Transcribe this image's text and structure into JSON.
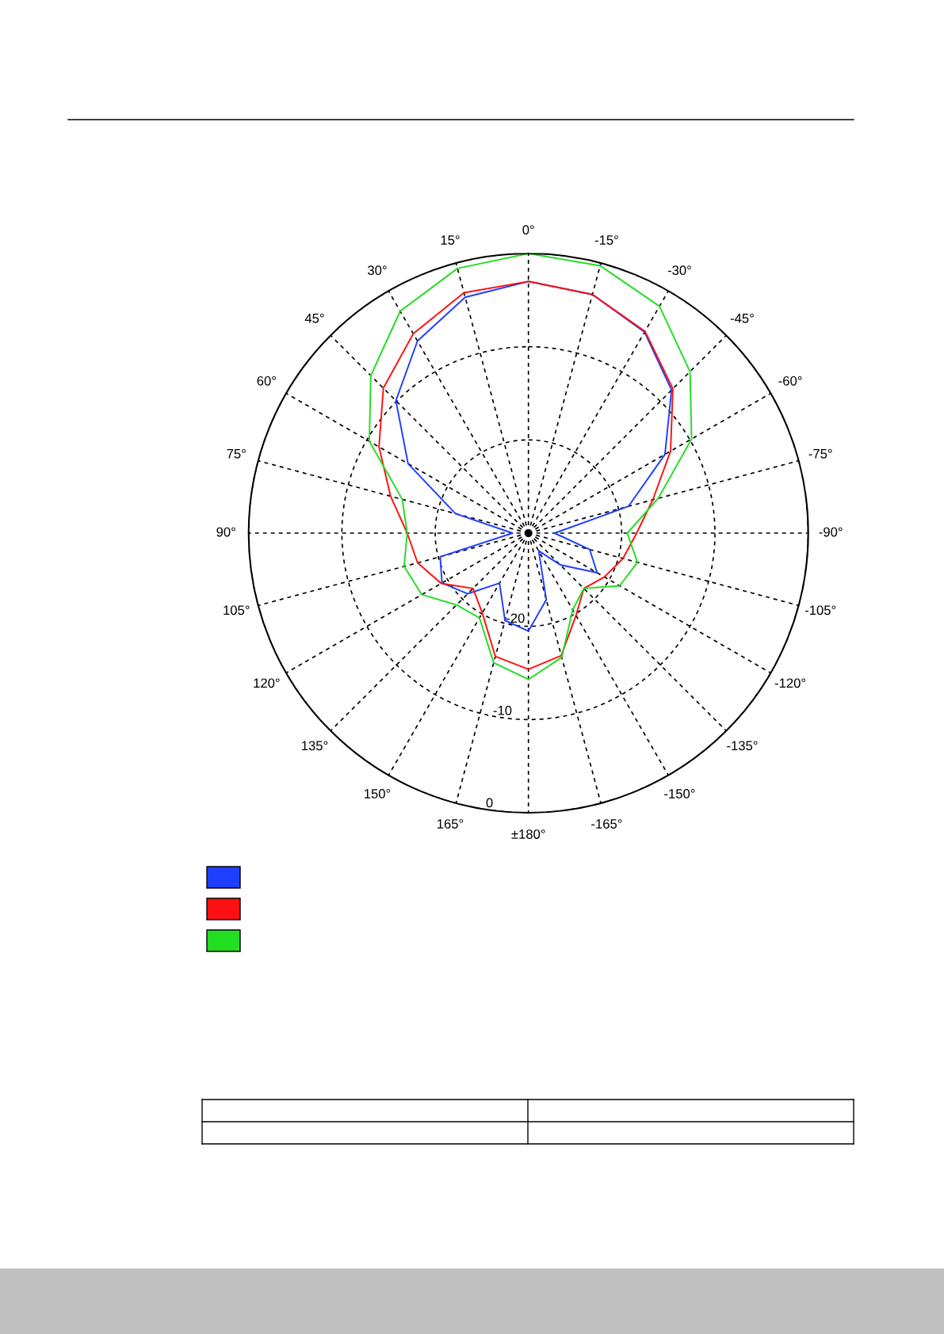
{
  "chart_data": {
    "type": "radar",
    "categories": [
      "0°",
      "-15°",
      "-30°",
      "-45°",
      "-60°",
      "-75°",
      "-90°",
      "-105°",
      "-120°",
      "-135°",
      "-150°",
      "-165°",
      "±180°",
      "165°",
      "150°",
      "135°",
      "120°",
      "105°",
      "90°",
      "75°",
      "60°",
      "45°",
      "30°",
      "15°"
    ],
    "series": [
      {
        "color": "#1f3fff",
        "values": [
          -3.0,
          -3.5,
          -5.1,
          -8.3,
          -13.1,
          -18.9,
          -27.2,
          -23.2,
          -21.5,
          -25.2,
          -27.8,
          -22.6,
          -19.5,
          -20.3,
          -23.8,
          -20.8,
          -19.3,
          -20.2,
          -28.3,
          -21.9,
          -15.1,
          -9.9,
          -6.2,
          -3.8
        ]
      },
      {
        "color": "#ff1010",
        "values": [
          -3.0,
          -3.5,
          -5.0,
          -8.1,
          -12.4,
          -16.2,
          -18.4,
          -19.5,
          -20.6,
          -21.6,
          -19.8,
          -16.4,
          -15.4,
          -16.3,
          -20.1,
          -21.6,
          -19.2,
          -17.7,
          -17.0,
          -14.7,
          -11.5,
          -8.0,
          -5.3,
          -3.3
        ]
      },
      {
        "color": "#22dd22",
        "values": [
          0.0,
          -0.3,
          -1.9,
          -5.5,
          -9.8,
          -15.6,
          -19.4,
          -17.9,
          -18.7,
          -21.6,
          -20.5,
          -16.2,
          -14.3,
          -15.6,
          -19.5,
          -19.1,
          -16.8,
          -16.2,
          -17.0,
          -16.0,
          -10.3,
          -6.1,
          -2.5,
          -0.6
        ]
      }
    ],
    "ylim": [
      -30,
      0
    ],
    "yticks": [
      -20,
      -10,
      0
    ],
    "grid": true,
    "marker": "none",
    "line_style": "solid"
  }
}
